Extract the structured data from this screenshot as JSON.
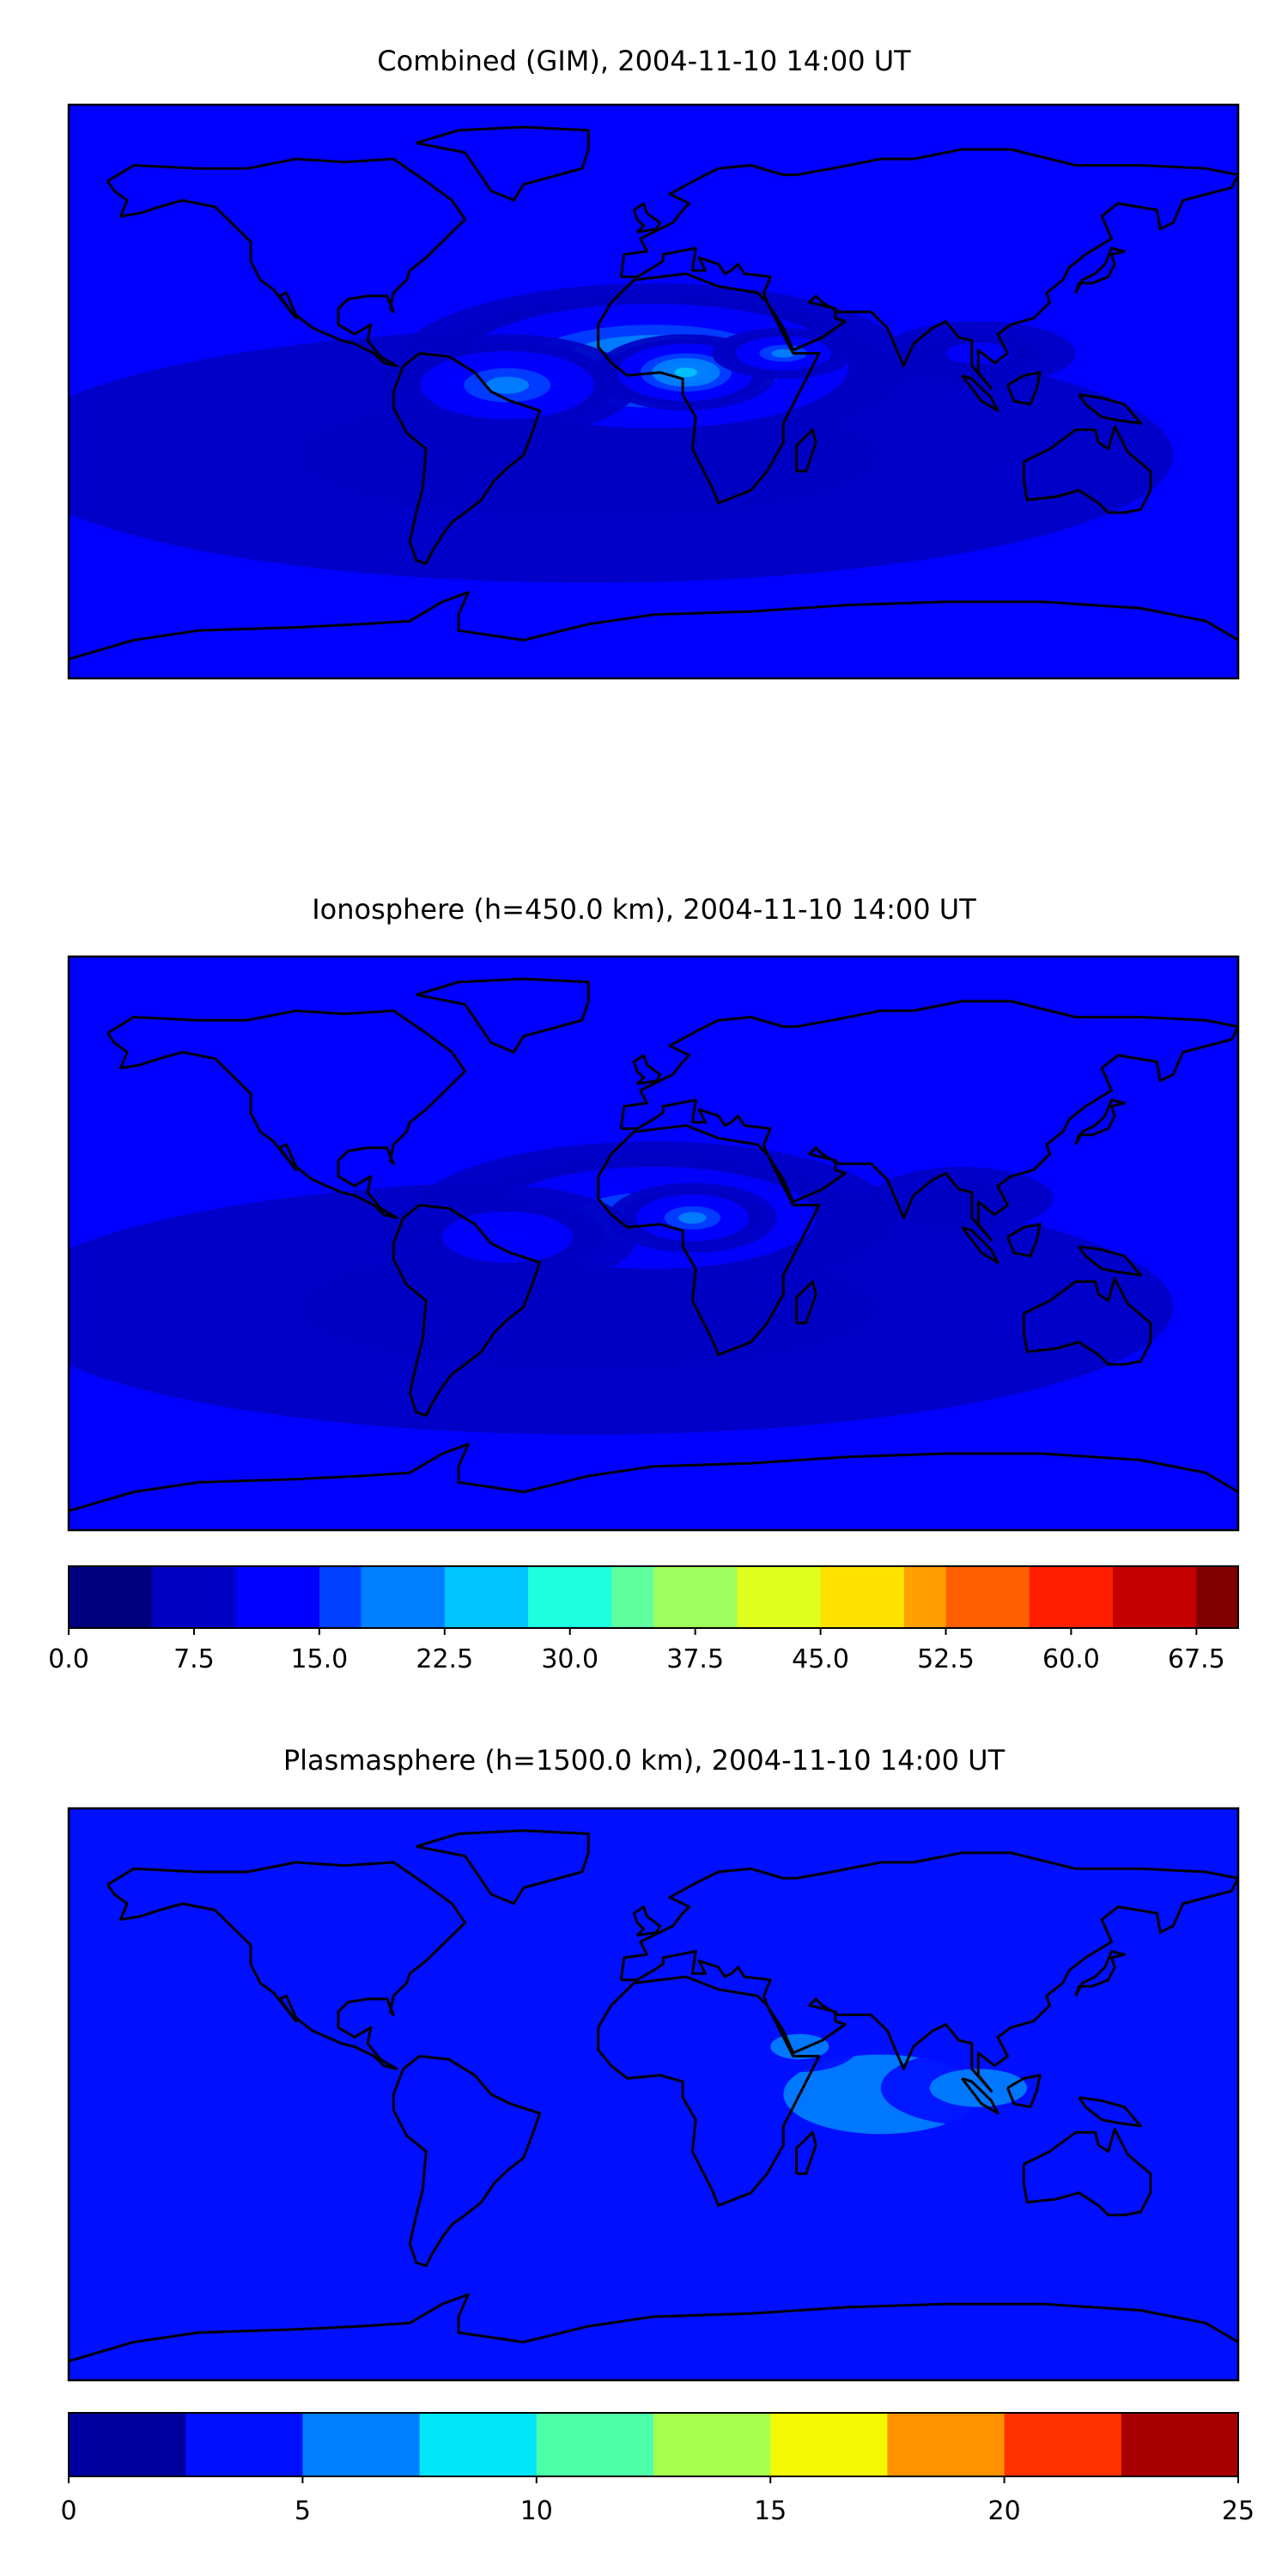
{
  "panels": [
    {
      "title": "Combined (GIM), 2004-11-10 14:00 UT",
      "colorbar": {
        "min": 0,
        "max": 70,
        "step": 2.5,
        "ticks": [
          "0.0",
          "7.5",
          "15.0",
          "22.5",
          "30.0",
          "37.5",
          "45.0",
          "52.5",
          "60.0",
          "67.5"
        ],
        "tick_values": [
          0,
          7.5,
          15,
          22.5,
          30,
          37.5,
          45,
          52.5,
          60,
          67.5
        ]
      },
      "blobs": [
        {
          "lon": -20,
          "lat": -20,
          "value": 6,
          "sx": 180,
          "sy": 40
        },
        {
          "lon": 0,
          "lat": 8,
          "value": 20,
          "sx": 80,
          "sy": 26
        },
        {
          "lon": -45,
          "lat": 2,
          "value": 14,
          "sx": 40,
          "sy": 16
        },
        {
          "lon": 10,
          "lat": 6,
          "value": 20,
          "sx": 28,
          "sy": 12
        },
        {
          "lon": 40,
          "lat": 12,
          "value": 14,
          "sx": 22,
          "sy": 8
        },
        {
          "lon": 100,
          "lat": 12,
          "value": 8,
          "sx": 30,
          "sy": 10
        }
      ]
    },
    {
      "title": "Ionosphere  (h=450.0 km), 2004-11-10 14:00 UT",
      "colorbar": {
        "min": 0,
        "max": 70,
        "step": 2.5,
        "ticks": [
          "0.0",
          "7.5",
          "15.0",
          "22.5",
          "30.0",
          "37.5",
          "45.0",
          "52.5",
          "60.0",
          "67.5"
        ],
        "tick_values": [
          0,
          7.5,
          15,
          22.5,
          30,
          37.5,
          45,
          52.5,
          60,
          67.5
        ]
      },
      "blobs": [
        {
          "lon": -20,
          "lat": -20,
          "value": 4,
          "sx": 180,
          "sy": 40
        },
        {
          "lon": 0,
          "lat": 8,
          "value": 16,
          "sx": 75,
          "sy": 24
        },
        {
          "lon": -45,
          "lat": 2,
          "value": 10,
          "sx": 40,
          "sy": 16
        },
        {
          "lon": 12,
          "lat": 8,
          "value": 16,
          "sx": 26,
          "sy": 11
        },
        {
          "lon": 95,
          "lat": 14,
          "value": 6,
          "sx": 28,
          "sy": 10
        }
      ]
    },
    {
      "title": "Plasmasphere (h=1500.0 km), 2004-11-10 14:00 UT",
      "colorbar": {
        "min": 0,
        "max": 25,
        "step": 2.5,
        "ticks": [
          "0",
          "5",
          "10",
          "15",
          "20",
          "25"
        ],
        "tick_values": [
          0,
          5,
          10,
          15,
          20,
          25
        ]
      },
      "blobs": [
        {
          "lon": 20,
          "lat": -10,
          "value": 3.5,
          "sx": 150,
          "sy": 45
        },
        {
          "lon": 70,
          "lat": 0,
          "value": 6,
          "sx": 60,
          "sy": 25
        },
        {
          "lon": 100,
          "lat": 2,
          "value": 5,
          "sx": 30,
          "sy": 12
        },
        {
          "lon": 45,
          "lat": 15,
          "value": 4,
          "sx": 18,
          "sy": 8
        },
        {
          "lon": -10,
          "lat": 15,
          "value": 3,
          "sx": 18,
          "sy": 8
        }
      ]
    }
  ],
  "colors": {
    "jet": [
      "#00007f",
      "#0000c4",
      "#0000ff",
      "#0040ff",
      "#0080ff",
      "#00c4ff",
      "#1fffdf",
      "#5fff9f",
      "#9fff5f",
      "#dfff1f",
      "#ffe100",
      "#ff9f00",
      "#ff5f00",
      "#ff1f00",
      "#c40000",
      "#800000"
    ],
    "plasma_bins": [
      "#00009e",
      "#0010ff",
      "#0080ff",
      "#00e5f8",
      "#4effa9",
      "#a7ff4f",
      "#f4f802",
      "#ff9200",
      "#ff3200",
      "#a80000"
    ],
    "coastline": "#000000"
  }
}
